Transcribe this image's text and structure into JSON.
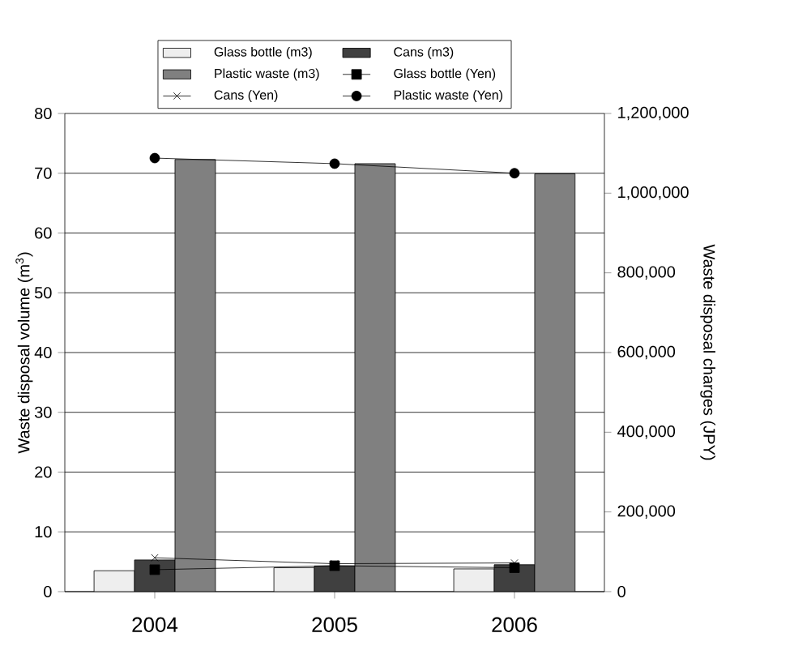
{
  "chart_data": {
    "type": "bar",
    "categories": [
      "2004",
      "2005",
      "2006"
    ],
    "ylabel": "Waste disposal volume (m$^{3}$)",
    "y2label": "Waste disposal charges (JPY)",
    "ylim": [
      0,
      80
    ],
    "yticks": [
      0,
      10,
      20,
      30,
      40,
      50,
      60,
      70,
      80
    ],
    "y2lim": [
      0,
      1200000
    ],
    "y2ticks": [
      0,
      {
        "value": 200000,
        "label": "200,000"
      },
      {
        "value": 400000,
        "label": "400,000"
      },
      {
        "value": 600000,
        "label": "600,000"
      },
      {
        "value": 800000,
        "label": "800,000"
      },
      {
        "value": 1000000,
        "label": "1,000,000"
      },
      {
        "value": 1200000,
        "label": "1,200,000"
      }
    ],
    "grid": "y",
    "legend": "top",
    "series": [
      {
        "name": "Glass bottle (m3)",
        "color": "#eeeeee",
        "values": [
          3.5,
          4.0,
          3.8
        ]
      },
      {
        "name": "Cans (m3)",
        "color": "#404040",
        "values": [
          5.3,
          4.3,
          4.5
        ]
      },
      {
        "name": "Plastic waste (m3)",
        "color": "#808080",
        "values": [
          72.3,
          71.6,
          69.9
        ]
      },
      {
        "name": "Glass bottle (Yen)",
        "type": "line",
        "axis": "y2",
        "marker": "square",
        "color": "#000000",
        "values": [
          55000,
          65000,
          60000
        ]
      },
      {
        "name": "Cans (Yen)",
        "type": "line",
        "axis": "y2",
        "marker": "cross",
        "color": "#000000",
        "values": [
          85000,
          70000,
          72000
        ]
      },
      {
        "name": "Plastic waste (Yen)",
        "type": "line",
        "axis": "y2",
        "marker": "circle",
        "color": "#000000",
        "values": [
          1088000,
          1074000,
          1050000
        ]
      }
    ]
  }
}
